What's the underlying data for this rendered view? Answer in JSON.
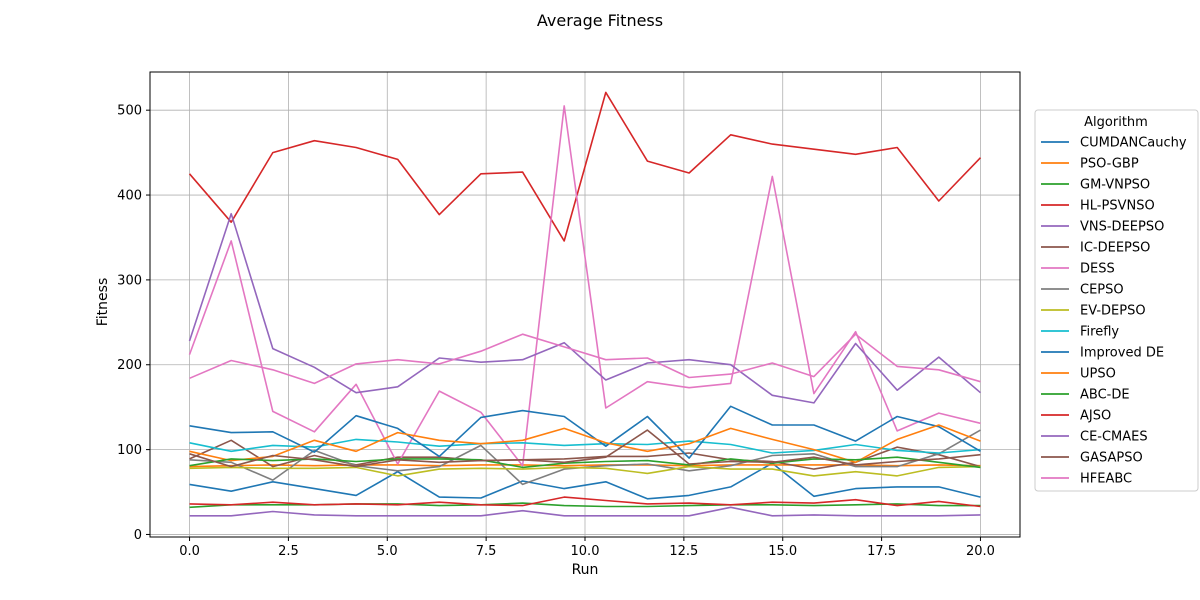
{
  "chart_data": {
    "type": "line",
    "title": "Average Fitness",
    "xlabel": "Run",
    "ylabel": "Fitness",
    "xlim": [
      -1,
      21
    ],
    "ylim": [
      -3,
      545
    ],
    "xticks": [
      "0.0",
      "2.5",
      "5.0",
      "7.5",
      "10.0",
      "12.5",
      "15.0",
      "17.5",
      "20.0"
    ],
    "yticks": [
      "0",
      "100",
      "200",
      "300",
      "400",
      "500"
    ],
    "grid": true,
    "legend": {
      "title": "Algorithm",
      "placement": "outside right"
    },
    "x": [
      0,
      1.053,
      2.105,
      3.158,
      4.211,
      5.263,
      6.316,
      7.368,
      8.421,
      9.474,
      10.526,
      11.579,
      12.632,
      13.684,
      14.737,
      15.789,
      16.842,
      17.895,
      18.947,
      20
    ],
    "series": [
      {
        "name": "CUMDANCauchy",
        "color": "#1f77b4",
        "values": [
          59,
          51,
          62,
          54,
          46,
          74,
          44,
          43,
          63,
          54,
          62,
          42,
          46,
          56,
          84,
          45,
          54,
          56,
          56,
          44
        ]
      },
      {
        "name": "PSO-GBP",
        "color": "#ff7f0e",
        "values": [
          80,
          81,
          82,
          81,
          82,
          82,
          81,
          82,
          82,
          81,
          82,
          82,
          81,
          82,
          82,
          82,
          82,
          81,
          82,
          81
        ]
      },
      {
        "name": "GM-VNPSO",
        "color": "#2ca02c",
        "values": [
          32,
          35,
          35,
          35,
          36,
          36,
          34,
          35,
          37,
          34,
          33,
          33,
          34,
          35,
          35,
          34,
          35,
          36,
          34,
          34
        ]
      },
      {
        "name": "HL-PSVNSO",
        "color": "#d62728",
        "values": [
          425,
          368,
          450,
          464,
          456,
          442,
          377,
          425,
          427,
          346,
          521,
          440,
          426,
          471,
          460,
          454,
          448,
          456,
          393,
          444
        ]
      },
      {
        "name": "VNS-DEEPSO",
        "color": "#9467bd",
        "values": [
          22,
          22,
          27,
          23,
          22,
          22,
          22,
          22,
          28,
          22,
          22,
          22,
          22,
          32,
          22,
          23,
          22,
          22,
          22,
          23
        ]
      },
      {
        "name": "IC-DEEPSO",
        "color": "#8c564b",
        "values": [
          89,
          111,
          80,
          93,
          82,
          91,
          91,
          87,
          88,
          89,
          92,
          92,
          96,
          88,
          86,
          77,
          85,
          103,
          94,
          80
        ]
      },
      {
        "name": "DESS",
        "color": "#e377c2",
        "values": [
          212,
          346,
          145,
          121,
          177,
          83,
          169,
          144,
          81,
          505,
          149,
          180,
          173,
          178,
          422,
          166,
          239,
          122,
          143,
          131
        ]
      },
      {
        "name": "CEPSO",
        "color": "#7f7f7f",
        "values": [
          88,
          85,
          64,
          99,
          81,
          75,
          80,
          105,
          59,
          77,
          81,
          83,
          75,
          81,
          93,
          95,
          80,
          80,
          95,
          123
        ]
      },
      {
        "name": "EV-DEPSO",
        "color": "#bcbd22",
        "values": [
          78,
          79,
          78,
          78,
          79,
          69,
          77,
          78,
          77,
          79,
          78,
          72,
          80,
          77,
          77,
          69,
          74,
          69,
          79,
          80
        ]
      },
      {
        "name": "Firefly",
        "color": "#17becf",
        "values": [
          108,
          98,
          105,
          103,
          112,
          109,
          104,
          107,
          108,
          105,
          107,
          106,
          110,
          106,
          96,
          99,
          106,
          99,
          96,
          100
        ]
      },
      {
        "name": "Improved DE",
        "color": "#1f77b4",
        "values": [
          128,
          120,
          121,
          97,
          140,
          125,
          92,
          138,
          146,
          139,
          104,
          139,
          90,
          151,
          129,
          129,
          110,
          139,
          127,
          98
        ]
      },
      {
        "name": "UPSO",
        "color": "#ff7f0e",
        "values": [
          98,
          87,
          92,
          111,
          98,
          120,
          111,
          107,
          111,
          125,
          108,
          98,
          107,
          125,
          112,
          100,
          85,
          112,
          129,
          110
        ]
      },
      {
        "name": "ABC-DE",
        "color": "#2ca02c",
        "values": [
          81,
          89,
          87,
          89,
          86,
          89,
          89,
          88,
          79,
          84,
          86,
          87,
          82,
          89,
          84,
          89,
          88,
          91,
          85,
          79
        ]
      },
      {
        "name": "AJSO",
        "color": "#d62728",
        "values": [
          36,
          35,
          38,
          35,
          36,
          35,
          38,
          35,
          34,
          44,
          40,
          36,
          37,
          35,
          38,
          37,
          41,
          34,
          39,
          33
        ]
      },
      {
        "name": "CE-CMAES",
        "color": "#9467bd",
        "values": [
          228,
          378,
          219,
          197,
          167,
          174,
          208,
          203,
          206,
          226,
          182,
          202,
          206,
          200,
          164,
          155,
          225,
          170,
          209,
          167
        ]
      },
      {
        "name": "GASAPSO",
        "color": "#8c564b",
        "values": [
          95,
          80,
          93,
          88,
          80,
          88,
          85,
          87,
          88,
          85,
          91,
          123,
          83,
          86,
          85,
          91,
          82,
          86,
          89,
          94
        ]
      },
      {
        "name": "HFEABC",
        "color": "#e377c2",
        "values": [
          184,
          205,
          194,
          178,
          201,
          206,
          201,
          216,
          236,
          221,
          206,
          208,
          185,
          189,
          202,
          186,
          236,
          198,
          194,
          180
        ]
      }
    ]
  }
}
